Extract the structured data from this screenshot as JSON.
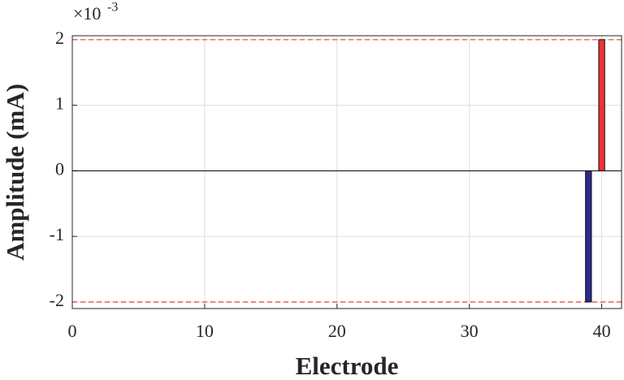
{
  "chart_data": {
    "type": "bar",
    "x_label": "Electrode",
    "y_label": "Amplitude (mA)",
    "y_multiplier": {
      "base": "×10",
      "exponent": "-3"
    },
    "x": [
      39,
      40
    ],
    "values": [
      -2,
      2
    ],
    "colors": [
      "#2b2b8c",
      "#f03030"
    ],
    "limit_lines": {
      "values": [
        -2,
        2
      ],
      "color": "#e8504a",
      "style": "dashed"
    },
    "xlim": [
      0,
      41.5
    ],
    "ylim": [
      -2.1,
      2.06
    ],
    "xticks": [
      0,
      10,
      20,
      30,
      40
    ],
    "yticks": [
      -2,
      -1,
      0,
      1,
      2
    ],
    "grid": true
  }
}
